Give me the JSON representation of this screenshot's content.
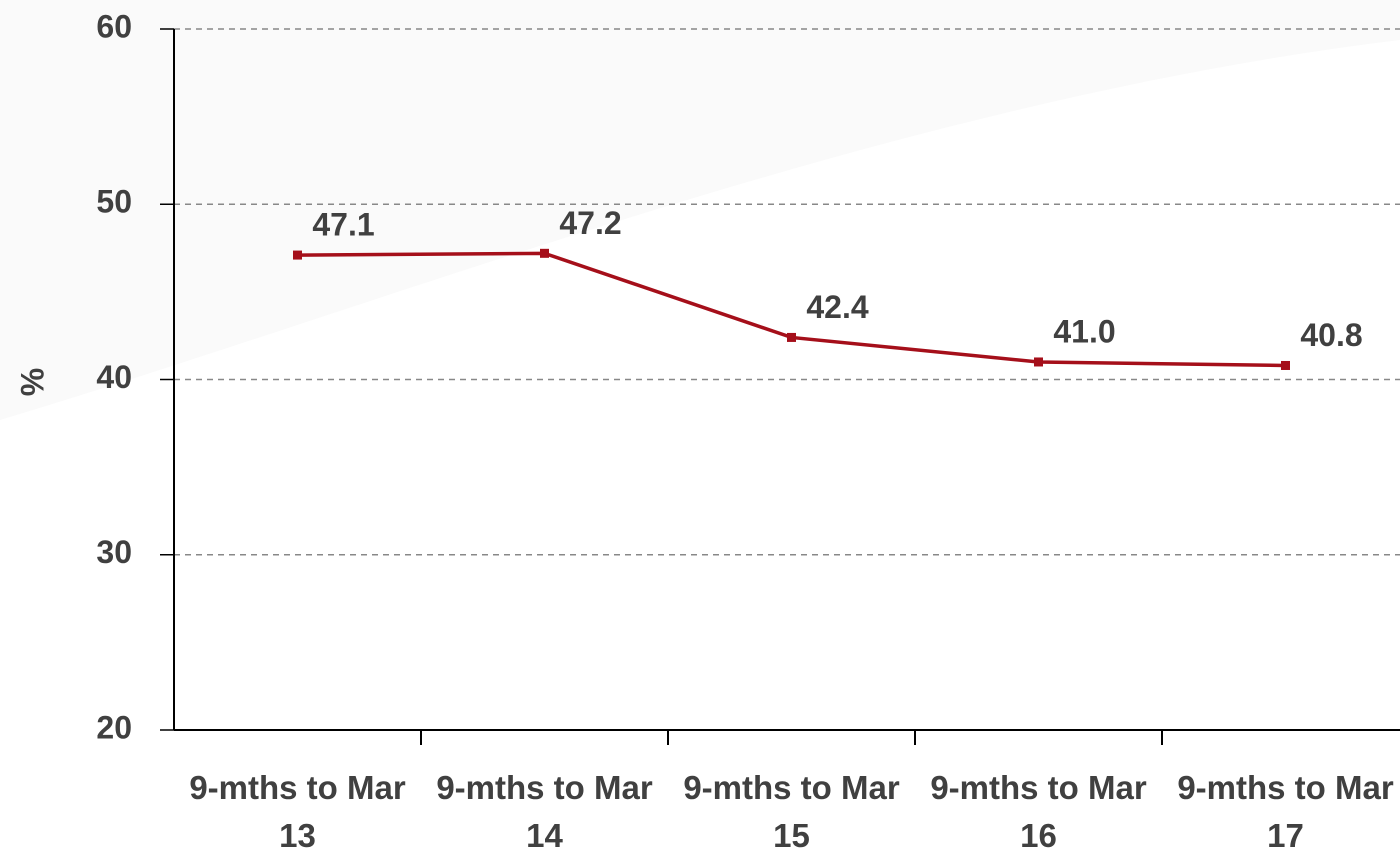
{
  "chart_data": {
    "type": "line",
    "y_label": "%",
    "categories": [
      "9-mths to Mar 13",
      "9-mths to Mar 14",
      "9-mths to Mar 15",
      "9-mths to Mar 16",
      "9-mths to Mar 17"
    ],
    "series": [
      {
        "color": "#a50f1a",
        "values": [
          47.1,
          47.2,
          42.4,
          41.0,
          40.8
        ],
        "value_labels": [
          "47.1",
          "47.2",
          "42.4",
          "41.0",
          "40.8"
        ]
      }
    ],
    "ylim": [
      20,
      60
    ],
    "yticks": [
      20,
      30,
      40,
      50,
      60
    ],
    "grid": true
  }
}
